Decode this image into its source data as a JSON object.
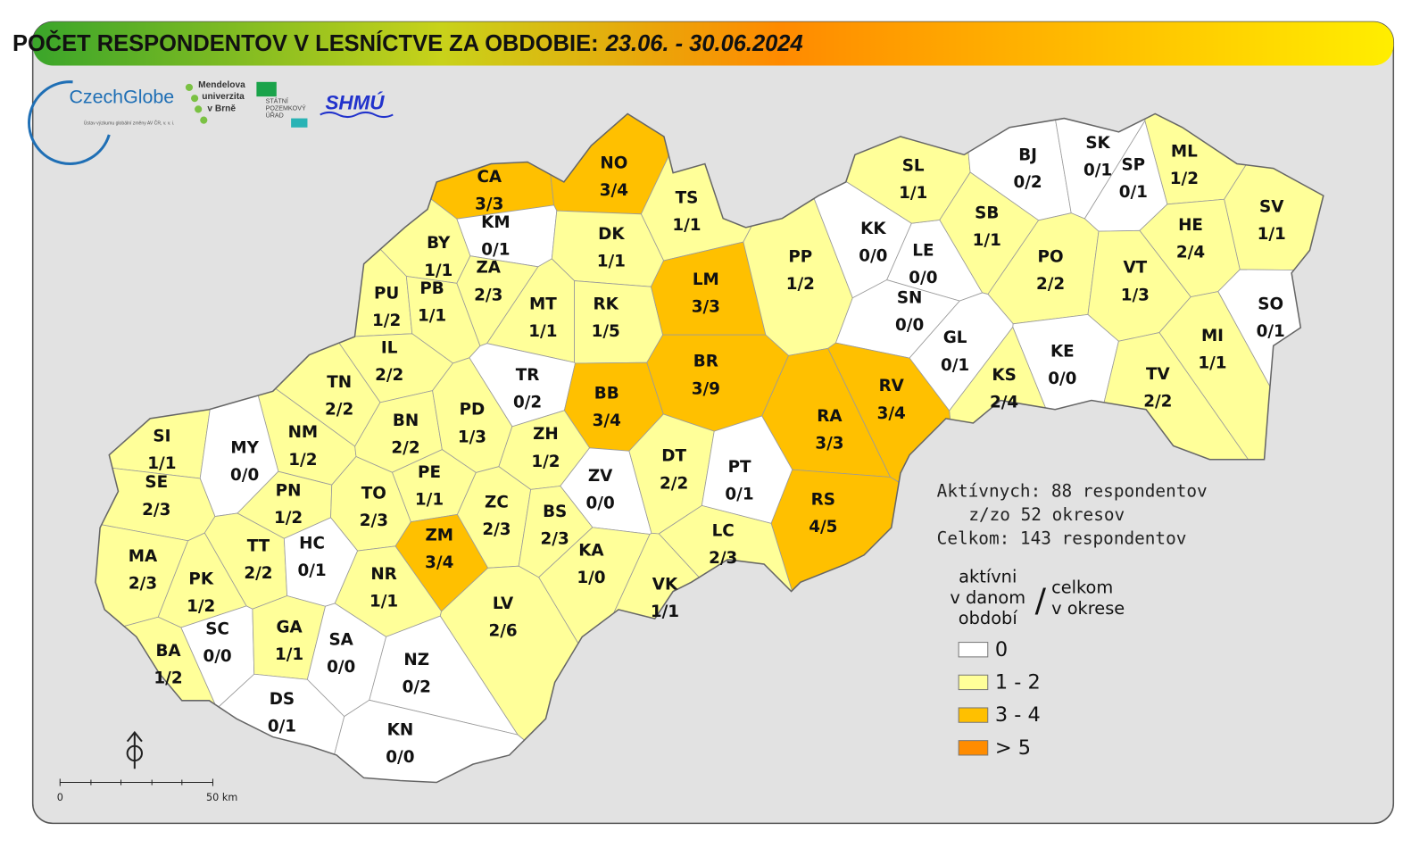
{
  "header": {
    "title": "POČET RESPONDENTOV V LESNÍCTVE ZA OBDOBIE:",
    "period": "23.06. - 30.06.2024"
  },
  "logos": {
    "czechglobe": "CzechGlobe",
    "czechglobe_sub": "Ústav výzkumu globální změny AV ČR, v. v. i.",
    "mendel": [
      "Mendelova",
      "univerzita",
      "v Brně"
    ],
    "spu": [
      "STÁTNÍ",
      "POZEMKOVÝ",
      "ÚŘAD"
    ],
    "shmu": "SHMÚ"
  },
  "map": {
    "districts": [
      {
        "code": "CA",
        "active": 3,
        "total": 3,
        "label": "3/3",
        "color": "#ffc000"
      },
      {
        "code": "NO",
        "active": 3,
        "total": 4,
        "label": "3/4",
        "color": "#ffc000"
      },
      {
        "code": "TS",
        "active": 1,
        "total": 1,
        "label": "1/1",
        "color": "#ffff99"
      },
      {
        "code": "KM",
        "active": 0,
        "total": 1,
        "label": "0/1",
        "color": "#ffffff"
      },
      {
        "code": "BY",
        "active": 1,
        "total": 1,
        "label": "1/1",
        "color": "#ffff99"
      },
      {
        "code": "ZA",
        "active": 2,
        "total": 3,
        "label": "2/3",
        "color": "#ffff99"
      },
      {
        "code": "DK",
        "active": 1,
        "total": 1,
        "label": "1/1",
        "color": "#ffff99"
      },
      {
        "code": "PU",
        "active": 1,
        "total": 2,
        "label": "1/2",
        "color": "#ffff99"
      },
      {
        "code": "PB",
        "active": 1,
        "total": 1,
        "label": "1/1",
        "color": "#ffff99"
      },
      {
        "code": "MT",
        "active": 1,
        "total": 1,
        "label": "1/1",
        "color": "#ffff99"
      },
      {
        "code": "RK",
        "active": 1,
        "total": 5,
        "label": "1/5",
        "color": "#ffff99"
      },
      {
        "code": "LM",
        "active": 3,
        "total": 3,
        "label": "3/3",
        "color": "#ffc000"
      },
      {
        "code": "PP",
        "active": 1,
        "total": 2,
        "label": "1/2",
        "color": "#ffff99"
      },
      {
        "code": "KK",
        "active": 0,
        "total": 0,
        "label": "0/0",
        "color": "#ffffff"
      },
      {
        "code": "LE",
        "active": 0,
        "total": 0,
        "label": "0/0",
        "color": "#ffffff"
      },
      {
        "code": "SN",
        "active": 0,
        "total": 0,
        "label": "0/0",
        "color": "#ffffff"
      },
      {
        "code": "SL",
        "active": 1,
        "total": 1,
        "label": "1/1",
        "color": "#ffff99"
      },
      {
        "code": "BJ",
        "active": 0,
        "total": 2,
        "label": "0/2",
        "color": "#ffffff"
      },
      {
        "code": "SK",
        "active": 0,
        "total": 1,
        "label": "0/1",
        "color": "#ffffff"
      },
      {
        "code": "SP",
        "active": 0,
        "total": 1,
        "label": "0/1",
        "color": "#ffffff"
      },
      {
        "code": "ML",
        "active": 1,
        "total": 2,
        "label": "1/2",
        "color": "#ffff99"
      },
      {
        "code": "SV",
        "active": 1,
        "total": 1,
        "label": "1/1",
        "color": "#ffff99"
      },
      {
        "code": "SB",
        "active": 1,
        "total": 1,
        "label": "1/1",
        "color": "#ffff99"
      },
      {
        "code": "PO",
        "active": 2,
        "total": 2,
        "label": "2/2",
        "color": "#ffff99"
      },
      {
        "code": "HE",
        "active": 2,
        "total": 4,
        "label": "2/4",
        "color": "#ffff99"
      },
      {
        "code": "VT",
        "active": 1,
        "total": 3,
        "label": "1/3",
        "color": "#ffff99"
      },
      {
        "code": "SO",
        "active": 0,
        "total": 1,
        "label": "0/1",
        "color": "#ffffff"
      },
      {
        "code": "MI",
        "active": 1,
        "total": 1,
        "label": "1/1",
        "color": "#ffff99"
      },
      {
        "code": "GL",
        "active": 0,
        "total": 1,
        "label": "0/1",
        "color": "#ffffff"
      },
      {
        "code": "KE",
        "active": 0,
        "total": 0,
        "label": "0/0",
        "color": "#ffffff"
      },
      {
        "code": "KS",
        "active": 2,
        "total": 4,
        "label": "2/4",
        "color": "#ffff99"
      },
      {
        "code": "TV",
        "active": 2,
        "total": 2,
        "label": "2/2",
        "color": "#ffff99"
      },
      {
        "code": "IL",
        "active": 2,
        "total": 2,
        "label": "2/2",
        "color": "#ffff99"
      },
      {
        "code": "TN",
        "active": 2,
        "total": 2,
        "label": "2/2",
        "color": "#ffff99"
      },
      {
        "code": "TR",
        "active": 0,
        "total": 2,
        "label": "0/2",
        "color": "#ffffff"
      },
      {
        "code": "BB",
        "active": 3,
        "total": 4,
        "label": "3/4",
        "color": "#ffc000"
      },
      {
        "code": "BR",
        "active": 3,
        "total": 9,
        "label": "3/9",
        "color": "#ffc000"
      },
      {
        "code": "RA",
        "active": 3,
        "total": 3,
        "label": "3/3",
        "color": "#ffc000"
      },
      {
        "code": "RV",
        "active": 3,
        "total": 4,
        "label": "3/4",
        "color": "#ffc000"
      },
      {
        "code": "NM",
        "active": 1,
        "total": 2,
        "label": "1/2",
        "color": "#ffff99"
      },
      {
        "code": "BN",
        "active": 2,
        "total": 2,
        "label": "2/2",
        "color": "#ffff99"
      },
      {
        "code": "PD",
        "active": 1,
        "total": 3,
        "label": "1/3",
        "color": "#ffff99"
      },
      {
        "code": "ZH",
        "active": 1,
        "total": 2,
        "label": "1/2",
        "color": "#ffff99"
      },
      {
        "code": "SI",
        "active": 1,
        "total": 1,
        "label": "1/1",
        "color": "#ffff99"
      },
      {
        "code": "MY",
        "active": 0,
        "total": 0,
        "label": "0/0",
        "color": "#ffffff"
      },
      {
        "code": "SE",
        "active": 2,
        "total": 3,
        "label": "2/3",
        "color": "#ffff99"
      },
      {
        "code": "PE",
        "active": 1,
        "total": 1,
        "label": "1/1",
        "color": "#ffff99"
      },
      {
        "code": "ZV",
        "active": 0,
        "total": 0,
        "label": "0/0",
        "color": "#ffffff"
      },
      {
        "code": "DT",
        "active": 2,
        "total": 2,
        "label": "2/2",
        "color": "#ffff99"
      },
      {
        "code": "PT",
        "active": 0,
        "total": 1,
        "label": "0/1",
        "color": "#ffffff"
      },
      {
        "code": "RS",
        "active": 4,
        "total": 5,
        "label": "4/5",
        "color": "#ffc000"
      },
      {
        "code": "PN",
        "active": 1,
        "total": 2,
        "label": "1/2",
        "color": "#ffff99"
      },
      {
        "code": "TO",
        "active": 2,
        "total": 3,
        "label": "2/3",
        "color": "#ffff99"
      },
      {
        "code": "ZC",
        "active": 2,
        "total": 3,
        "label": "2/3",
        "color": "#ffff99"
      },
      {
        "code": "BS",
        "active": 2,
        "total": 3,
        "label": "2/3",
        "color": "#ffff99"
      },
      {
        "code": "ZM",
        "active": 3,
        "total": 4,
        "label": "3/4",
        "color": "#ffc000"
      },
      {
        "code": "MA",
        "active": 2,
        "total": 3,
        "label": "2/3",
        "color": "#ffff99"
      },
      {
        "code": "TT",
        "active": 2,
        "total": 2,
        "label": "2/2",
        "color": "#ffff99"
      },
      {
        "code": "HC",
        "active": 0,
        "total": 1,
        "label": "0/1",
        "color": "#ffffff"
      },
      {
        "code": "KA",
        "active": 1,
        "total": 0,
        "label": "1/0",
        "color": "#ffff99"
      },
      {
        "code": "LC",
        "active": 2,
        "total": 3,
        "label": "2/3",
        "color": "#ffff99"
      },
      {
        "code": "NR",
        "active": 1,
        "total": 1,
        "label": "1/1",
        "color": "#ffff99"
      },
      {
        "code": "PK",
        "active": 1,
        "total": 2,
        "label": "1/2",
        "color": "#ffff99"
      },
      {
        "code": "VK",
        "active": 1,
        "total": 1,
        "label": "1/1",
        "color": "#ffff99"
      },
      {
        "code": "LV",
        "active": 2,
        "total": 6,
        "label": "2/6",
        "color": "#ffff99"
      },
      {
        "code": "SC",
        "active": 0,
        "total": 0,
        "label": "0/0",
        "color": "#ffffff"
      },
      {
        "code": "GA",
        "active": 1,
        "total": 1,
        "label": "1/1",
        "color": "#ffff99"
      },
      {
        "code": "SA",
        "active": 0,
        "total": 0,
        "label": "0/0",
        "color": "#ffffff"
      },
      {
        "code": "BA",
        "active": 1,
        "total": 2,
        "label": "1/2",
        "color": "#ffff99"
      },
      {
        "code": "NZ",
        "active": 0,
        "total": 2,
        "label": "0/2",
        "color": "#ffffff"
      },
      {
        "code": "DS",
        "active": 0,
        "total": 1,
        "label": "0/1",
        "color": "#ffffff"
      },
      {
        "code": "KN",
        "active": 0,
        "total": 0,
        "label": "0/0",
        "color": "#ffffff"
      }
    ]
  },
  "summary": {
    "line1": "Aktívnych: 88 respondentov",
    "line2": "z/zo 52 okresov",
    "line3": "Celkom: 143 respondentov"
  },
  "legend": {
    "left": [
      "aktívni",
      "v danom",
      "období"
    ],
    "slash": "/",
    "right": [
      "celkom",
      "v okrese"
    ],
    "items": [
      {
        "label": "0",
        "color": "#ffffff"
      },
      {
        "label": "1 - 2",
        "color": "#ffff99"
      },
      {
        "label": "3 - 4",
        "color": "#ffc000"
      },
      {
        "label": "> 5",
        "color": "#ff8c00"
      }
    ]
  },
  "scale": {
    "start": "0",
    "end": "50 km"
  }
}
